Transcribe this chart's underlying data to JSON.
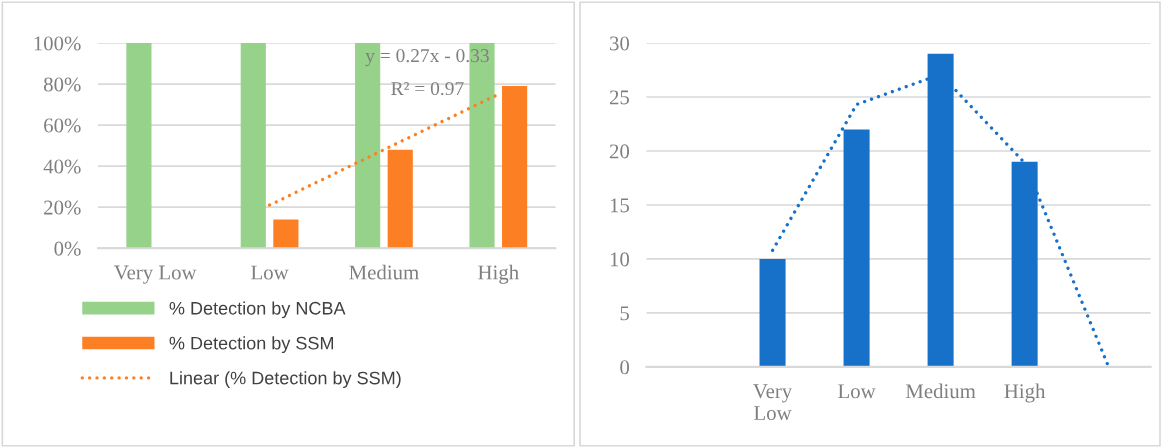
{
  "chart_data": [
    {
      "type": "bar",
      "categories": [
        "Very Low",
        "Low",
        "Medium",
        "High"
      ],
      "series": [
        {
          "name": "% Detection by NCBA",
          "color": "#97d28b",
          "values": [
            100,
            100,
            100,
            100
          ]
        },
        {
          "name": "% Detection by SSM",
          "color": "#fd7f23",
          "values": [
            0,
            14,
            48,
            79
          ]
        },
        {
          "name": "Linear (% Detection by SSM)",
          "type": "line",
          "line_style": "dotted",
          "color": "#fd7f23",
          "values": [
            null,
            21,
            48,
            75
          ]
        }
      ],
      "ylim": [
        0,
        100
      ],
      "yticks": [
        {
          "value": 0,
          "label": "0%"
        },
        {
          "value": 20,
          "label": "20%"
        },
        {
          "value": 40,
          "label": "40%"
        },
        {
          "value": 60,
          "label": "60%"
        },
        {
          "value": 80,
          "label": "80%"
        },
        {
          "value": 100,
          "label": "100%"
        }
      ],
      "grid": "y",
      "legend": "bottom",
      "annotations": [
        "y = 0.27x - 0.33",
        "R² = 0.97"
      ]
    },
    {
      "type": "bar",
      "categories": [
        null,
        "Very Low",
        "Low",
        "Medium",
        "High",
        null
      ],
      "series": [
        {
          "color": "#1771c9",
          "values": [
            null,
            10,
            22,
            29,
            19,
            null
          ]
        },
        {
          "type": "line",
          "line_style": "dotted",
          "color": "#1771c9",
          "values": [
            null,
            10.8,
            24.3,
            27.1,
            18.9,
            0
          ]
        }
      ],
      "ylim": [
        0,
        30
      ],
      "yticks": [
        0,
        5,
        10,
        15,
        20,
        25,
        30
      ],
      "grid": "y",
      "legend": false
    }
  ]
}
